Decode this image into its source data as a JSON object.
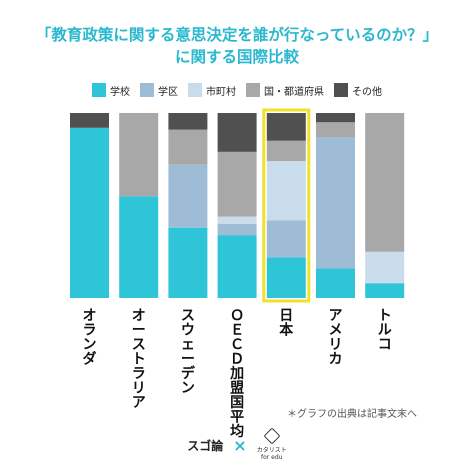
{
  "title_line1": "「教育政策に関する意思決定を誰が行なっているのか？」",
  "title_line2": "に関する国際比較",
  "footnote": "＊グラフの出典は記事文末へ",
  "footer": {
    "brand_left": "スゴ論",
    "separator": "×",
    "brand_right": "カタリスト",
    "brand_right_sub": "for edu"
  },
  "chart_data": {
    "type": "bar",
    "stacked": true,
    "normalized": true,
    "ylim": [
      0,
      100
    ],
    "categories": [
      "オランダ",
      "オーストラリア",
      "スウェーデン",
      "ＯＥＣＤ加盟国平均",
      "日本",
      "アメリカ",
      "トルコ"
    ],
    "highlight_category": "日本",
    "legend_position": "top",
    "series": [
      {
        "name": "学校",
        "color": "#2ec5d8",
        "values": [
          92,
          55,
          38,
          34,
          22,
          16,
          8
        ]
      },
      {
        "name": "学区",
        "color": "#9fbcd6",
        "values": [
          0,
          0,
          34,
          6,
          20,
          71,
          0
        ]
      },
      {
        "name": "市町村",
        "color": "#c9dcec",
        "values": [
          0,
          0,
          0,
          4,
          32,
          0,
          17
        ]
      },
      {
        "name": "国・都道府県",
        "color": "#a9a8a9",
        "values": [
          0,
          45,
          19,
          35,
          11,
          8,
          75
        ]
      },
      {
        "name": "その他",
        "color": "#505050",
        "values": [
          8,
          0,
          9,
          21,
          15,
          5,
          0
        ]
      }
    ]
  }
}
